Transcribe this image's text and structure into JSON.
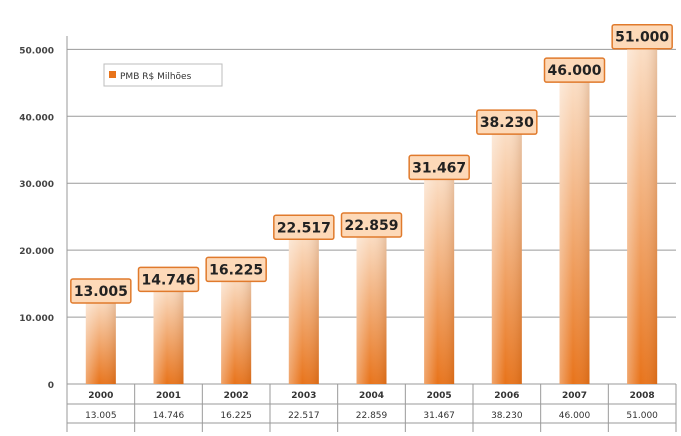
{
  "chart_data": {
    "type": "bar",
    "title": "",
    "xlabel": "",
    "ylabel": "",
    "legend": {
      "label": "PMB R$ Milhões",
      "placement": "top-left"
    },
    "categories": [
      "2000",
      "2001",
      "2002",
      "2003",
      "2004",
      "2005",
      "2006",
      "2007",
      "2008"
    ],
    "series": [
      {
        "name": "PMB R$ Milhões",
        "values": [
          13005,
          14746,
          16225,
          22517,
          22859,
          31467,
          38230,
          46000,
          51000
        ]
      }
    ],
    "data_labels": [
      "13.005",
      "14.746",
      "16.225",
      "22.517",
      "22.859",
      "31.467",
      "38.230",
      "46.000",
      "51.000"
    ],
    "table_values": [
      "13.005",
      "14.746",
      "16.225",
      "22.517",
      "22.859",
      "31.467",
      "38.230",
      "46.000",
      "51.000"
    ],
    "y_ticks": [
      0,
      10000,
      20000,
      30000,
      40000,
      50000
    ],
    "y_tick_labels": [
      "0",
      "10.000",
      "20.000",
      "30.000",
      "40.000",
      "50.000"
    ],
    "ylim": [
      0,
      52000
    ],
    "grid": true,
    "colors": {
      "bar_light": "#fbe0c8",
      "bar_dark": "#e8731a",
      "label_bg": "#fdd9b8",
      "label_border": "#e07a2c",
      "grid": "#9a9a9a",
      "text": "#333333"
    }
  }
}
